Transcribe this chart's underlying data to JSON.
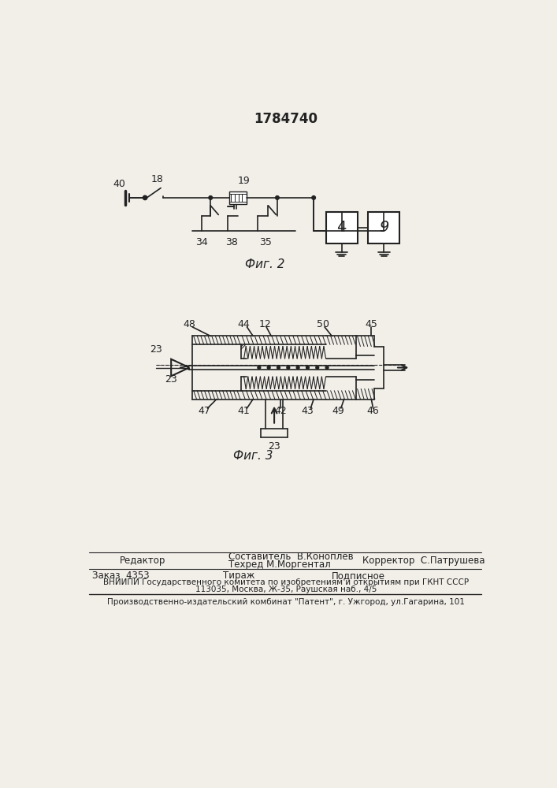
{
  "patent_number": "1784740",
  "fig2_label": "Фиг. 2",
  "fig3_label": "Фиг. 3",
  "footer": {
    "editor_label": "Редактор",
    "composer_label": "Составитель  В.Коноплев",
    "tech_label": "Техред М.Моргентал",
    "corrector_label": "Корректор  С.Патрушева",
    "order_label": "Заказ  4353",
    "print_run_label": "Тираж",
    "subscription_label": "Подписное",
    "vniip_label": "ВНИИПИ Государственного комитета по изобретениям и открытиям при ГКНТ СССР",
    "address_label": "113035, Москва, Ж-35, Раушская наб., 4/5",
    "printer_label": "Производственно-издательский комбинат \"Патент\", г. Ужгород, ул.Гагарина, 101"
  },
  "bg_color": "#f2efe9",
  "line_color": "#222222"
}
